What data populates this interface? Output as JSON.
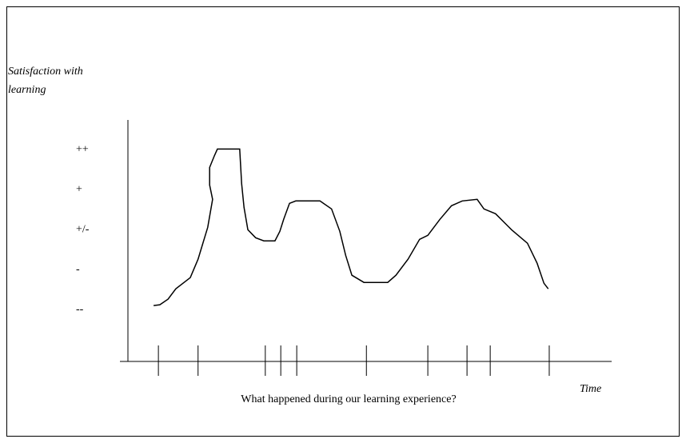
{
  "chart_data": {
    "type": "line",
    "ylabel": [
      "Satisfaction with",
      "learning"
    ],
    "xlabel": "What happened during our learning experience?",
    "xaxis_title": "Time",
    "xlim": [
      0,
      100
    ],
    "xticks": [
      6.3,
      14.5,
      28.4,
      31.6,
      34.9,
      49.3,
      62.0,
      70.1,
      74.9,
      87.1
    ],
    "ylim": [
      -3.3,
      2.75
    ],
    "yticks": [
      {
        "value": 2,
        "label": "++"
      },
      {
        "value": 1,
        "label": "+"
      },
      {
        "value": 0,
        "label": "+/-"
      },
      {
        "value": -1,
        "label": "-"
      },
      {
        "value": -2,
        "label": "--"
      }
    ],
    "color": "#000000",
    "x": [
      5.3,
      6.6,
      8.3,
      9.9,
      12.9,
      14.5,
      16.5,
      17.5,
      16.9,
      16.9,
      17.9,
      18.5,
      23.1,
      23.5,
      24.0,
      24.8,
      26.4,
      28.1,
      30.4,
      31.4,
      32.2,
      33.4,
      34.7,
      39.7,
      42.1,
      43.8,
      45.0,
      46.3,
      48.8,
      53.7,
      55.4,
      57.9,
      60.3,
      62.0,
      64.5,
      66.9,
      69.1,
      72.2,
      73.6,
      76.0,
      79.3,
      82.6,
      84.6,
      86.0,
      86.9
    ],
    "values": [
      -1.9,
      -1.88,
      -1.74,
      -1.48,
      -1.2,
      -0.74,
      0.06,
      0.76,
      1.12,
      1.56,
      1.86,
      2.02,
      2.02,
      1.16,
      0.56,
      0,
      -0.2,
      -0.28,
      -0.28,
      -0.04,
      0.26,
      0.66,
      0.72,
      0.72,
      0.52,
      -0.04,
      -0.64,
      -1.14,
      -1.32,
      -1.32,
      -1.14,
      -0.74,
      -0.24,
      -0.14,
      0.26,
      0.6,
      0.72,
      0.76,
      0.52,
      0.4,
      0,
      -0.34,
      -0.84,
      -1.34,
      -1.48
    ]
  }
}
